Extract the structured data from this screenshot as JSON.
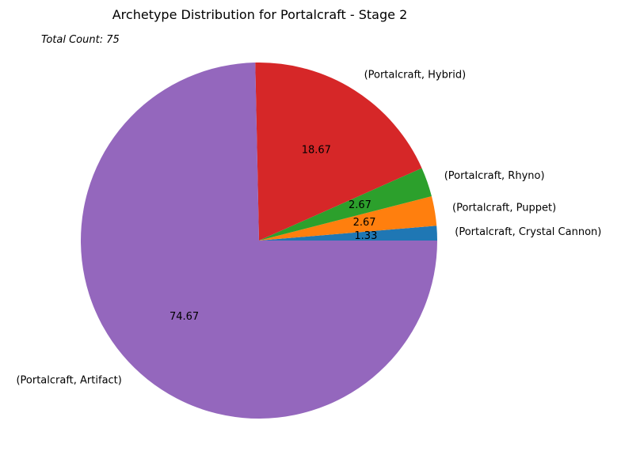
{
  "chart_data": {
    "type": "pie",
    "title": "Archetype Distribution for Portalcraft - Stage 2",
    "annotation": "Total Count: 75",
    "slices": [
      {
        "label": "(Portalcraft, Crystal Cannon)",
        "value": 1.33,
        "value_label": "1.33",
        "color": "#1f77b4"
      },
      {
        "label": "(Portalcraft, Puppet)",
        "value": 2.67,
        "value_label": "2.67",
        "color": "#ff7f0e"
      },
      {
        "label": "(Portalcraft, Rhyno)",
        "value": 2.67,
        "value_label": "2.67",
        "color": "#2ca02c"
      },
      {
        "label": "(Portalcraft, Hybrid)",
        "value": 18.67,
        "value_label": "18.67",
        "color": "#d62728"
      },
      {
        "label": "(Portalcraft, Artifact)",
        "value": 74.67,
        "value_label": "74.67",
        "color": "#9467bd"
      }
    ]
  }
}
